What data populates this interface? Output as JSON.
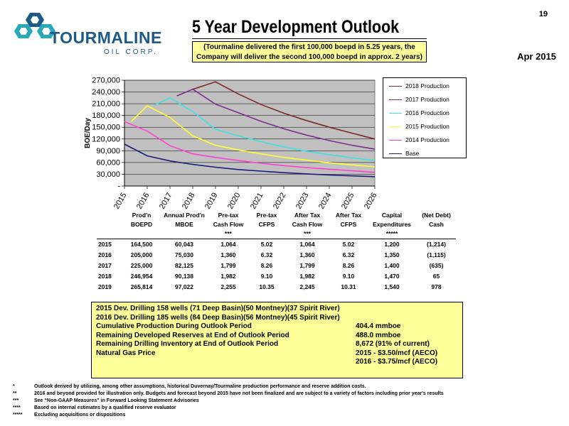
{
  "page_number": "19",
  "logo": {
    "name": "TOURMALINE",
    "sub": "OIL CORP."
  },
  "title": "5 Year Development Outlook",
  "subtitle_line1": "(Tourmaline delivered the first 100,000 boepd in 5.25 years, the",
  "subtitle_line2": "Company will deliver the second 100,000 boepd in approx. 2 years)",
  "date": "Apr 2015",
  "colors": {
    "plot_bg": "#c0c0c0",
    "yellow_box": "#ffff99",
    "logo_blue": "#1f5a86",
    "logo_teal": "#28a8b8"
  },
  "chart_data": {
    "type": "line",
    "ylabel": "BOE/Day",
    "xlabel": "",
    "x": [
      2015,
      2016,
      2017,
      2018,
      2019,
      2020,
      2021,
      2022,
      2023,
      2024,
      2025,
      2026
    ],
    "x_tick_labels": [
      "2015",
      "2016",
      "2017",
      "2018",
      "2019",
      "2020",
      "2021",
      "2022",
      "2023",
      "2024",
      "2025",
      "2026"
    ],
    "ylim": [
      0,
      270000
    ],
    "y_tick_values": [
      0,
      30000,
      60000,
      90000,
      120000,
      150000,
      180000,
      210000,
      240000,
      270000
    ],
    "y_tick_labels": [
      "-",
      "30,000",
      "60,000",
      "90,000",
      "120,000",
      "150,000",
      "180,000",
      "210,000",
      "240,000",
      "270,000"
    ],
    "grid": "horizontal",
    "legend_position": "right",
    "series": [
      {
        "name": "2018 Production",
        "color": "#7b2a2a",
        "points": [
          [
            2018,
            246954
          ],
          [
            2019,
            265814
          ],
          [
            2020,
            235000
          ],
          [
            2021,
            208000
          ],
          [
            2022,
            186000
          ],
          [
            2023,
            167000
          ],
          [
            2024,
            150000
          ],
          [
            2025,
            135000
          ],
          [
            2026,
            120000
          ]
        ]
      },
      {
        "name": "2017 Production",
        "color": "#7a2e8e",
        "points": [
          [
            2017.3,
            230000
          ],
          [
            2018,
            246954
          ],
          [
            2019,
            209000
          ],
          [
            2020,
            187000
          ],
          [
            2021,
            165000
          ],
          [
            2022,
            146000
          ],
          [
            2023,
            130000
          ],
          [
            2024,
            116000
          ],
          [
            2025,
            104000
          ],
          [
            2026,
            94000
          ]
        ]
      },
      {
        "name": "2016 Production",
        "color": "#40e0e0",
        "points": [
          [
            2016.3,
            206000
          ],
          [
            2017,
            225000
          ],
          [
            2018,
            190000
          ],
          [
            2019,
            145000
          ],
          [
            2020,
            128000
          ],
          [
            2021,
            113000
          ],
          [
            2022,
            100000
          ],
          [
            2023,
            89000
          ],
          [
            2024,
            80000
          ],
          [
            2025,
            72000
          ],
          [
            2026,
            65000
          ]
        ]
      },
      {
        "name": "2015 Production",
        "color": "#ffff33",
        "points": [
          [
            2015.3,
            164500
          ],
          [
            2016,
            205000
          ],
          [
            2017,
            175000
          ],
          [
            2018,
            128000
          ],
          [
            2019,
            104000
          ],
          [
            2020,
            92000
          ],
          [
            2021,
            82000
          ],
          [
            2022,
            73000
          ],
          [
            2023,
            66000
          ],
          [
            2024,
            59000
          ],
          [
            2025,
            54000
          ],
          [
            2026,
            49000
          ]
        ]
      },
      {
        "name": "2014 Production",
        "color": "#ff3fd0",
        "points": [
          [
            2015,
            164500
          ],
          [
            2016,
            140000
          ],
          [
            2017,
            103000
          ],
          [
            2018,
            82000
          ],
          [
            2019,
            73000
          ],
          [
            2020,
            65000
          ],
          [
            2021,
            58000
          ],
          [
            2022,
            52000
          ],
          [
            2023,
            47000
          ],
          [
            2024,
            43000
          ],
          [
            2025,
            39000
          ],
          [
            2026,
            35000
          ]
        ]
      },
      {
        "name": "Base",
        "color": "#1c1c7c",
        "points": [
          [
            2015,
            107000
          ],
          [
            2016,
            77000
          ],
          [
            2017,
            64000
          ],
          [
            2018,
            55000
          ],
          [
            2019,
            48000
          ],
          [
            2020,
            42000
          ],
          [
            2021,
            38000
          ],
          [
            2022,
            34000
          ],
          [
            2023,
            31000
          ],
          [
            2024,
            28000
          ],
          [
            2025,
            26000
          ],
          [
            2026,
            24000
          ]
        ]
      }
    ]
  },
  "table": {
    "headers_row1": [
      "",
      "Prod'n",
      "Annual Prod'n",
      "Pre-tax",
      "Pre-tax",
      "After Tax",
      "After Tax",
      "Capital",
      "(Net Debt)"
    ],
    "headers_row2": [
      "",
      "BOEPD",
      "MBOE",
      "Cash Flow",
      "CFPS",
      "Cash Flow",
      "CFPS",
      "Expenditures",
      "Cash"
    ],
    "headers_row3": [
      "",
      "",
      "",
      "***",
      "",
      "***",
      "",
      "*****",
      ""
    ],
    "rows": [
      [
        "2015",
        "164,500",
        "60,043",
        "1,064",
        "5.02",
        "1,064",
        "5.02",
        "1,200",
        "(1,214)"
      ],
      [
        "2016",
        "205,000",
        "75,030",
        "1,360",
        "6.32",
        "1,360",
        "6.32",
        "1,350",
        "(1,115)"
      ],
      [
        "2017",
        "225,000",
        "82,125",
        "1,799",
        "8.26",
        "1,799",
        "8.26",
        "1,400",
        "(635)"
      ],
      [
        "2018",
        "246,954",
        "90,138",
        "1,982",
        "9.10",
        "1,982",
        "9.10",
        "1,470",
        "65"
      ],
      [
        "2019",
        "265,814",
        "97,022",
        "2,255",
        "10.35",
        "2,245",
        "10.31",
        "1,540",
        "978"
      ]
    ]
  },
  "info_box": [
    {
      "label": "2015 Dev. Drilling 158 wells (71 Deep Basin)(50 Montney)(37 Spirit River)",
      "value": ""
    },
    {
      "label": "2016 Dev. Drilling 185 wells (84 Deep Basin)(56 Montney)(45 Spirit River)",
      "value": ""
    },
    {
      "label": "Cumulative Production During Outlook Period",
      "value": "404.4 mmboe"
    },
    {
      "label": "Remaining Developed Reserves at End of Outlook Period",
      "value": "488.0 mmboe"
    },
    {
      "label": "Remaining Drilling Inventory at End of Outlook Period",
      "value": "8,672 (91% of current)"
    },
    {
      "label": "Natural Gas Price",
      "value": "2015 - $3.50/mcf (AECO)"
    },
    {
      "label": "",
      "value": "2016 - $3.75/mcf (AECO)"
    }
  ],
  "footnotes": [
    {
      "mark": "*",
      "text": "Outlook derived by utilizing, among other assumptions, historical Duvernay/Tourmaline production performance and reserve addition costs."
    },
    {
      "mark": "**",
      "text": "2016 and beyond provided for illustration only.  Budgets and forecast beyond 2015 have not been finalized and are subject to a variety of factors including prior year's results"
    },
    {
      "mark": "***",
      "text": "See “Non-GAAP Measures” in Forward Looking Statement Advisories"
    },
    {
      "mark": "****",
      "text": "Based on internal estimates by a qualified reserve evaluator"
    },
    {
      "mark": "*****",
      "text": "Excluding acquisitions or dispositions"
    }
  ]
}
